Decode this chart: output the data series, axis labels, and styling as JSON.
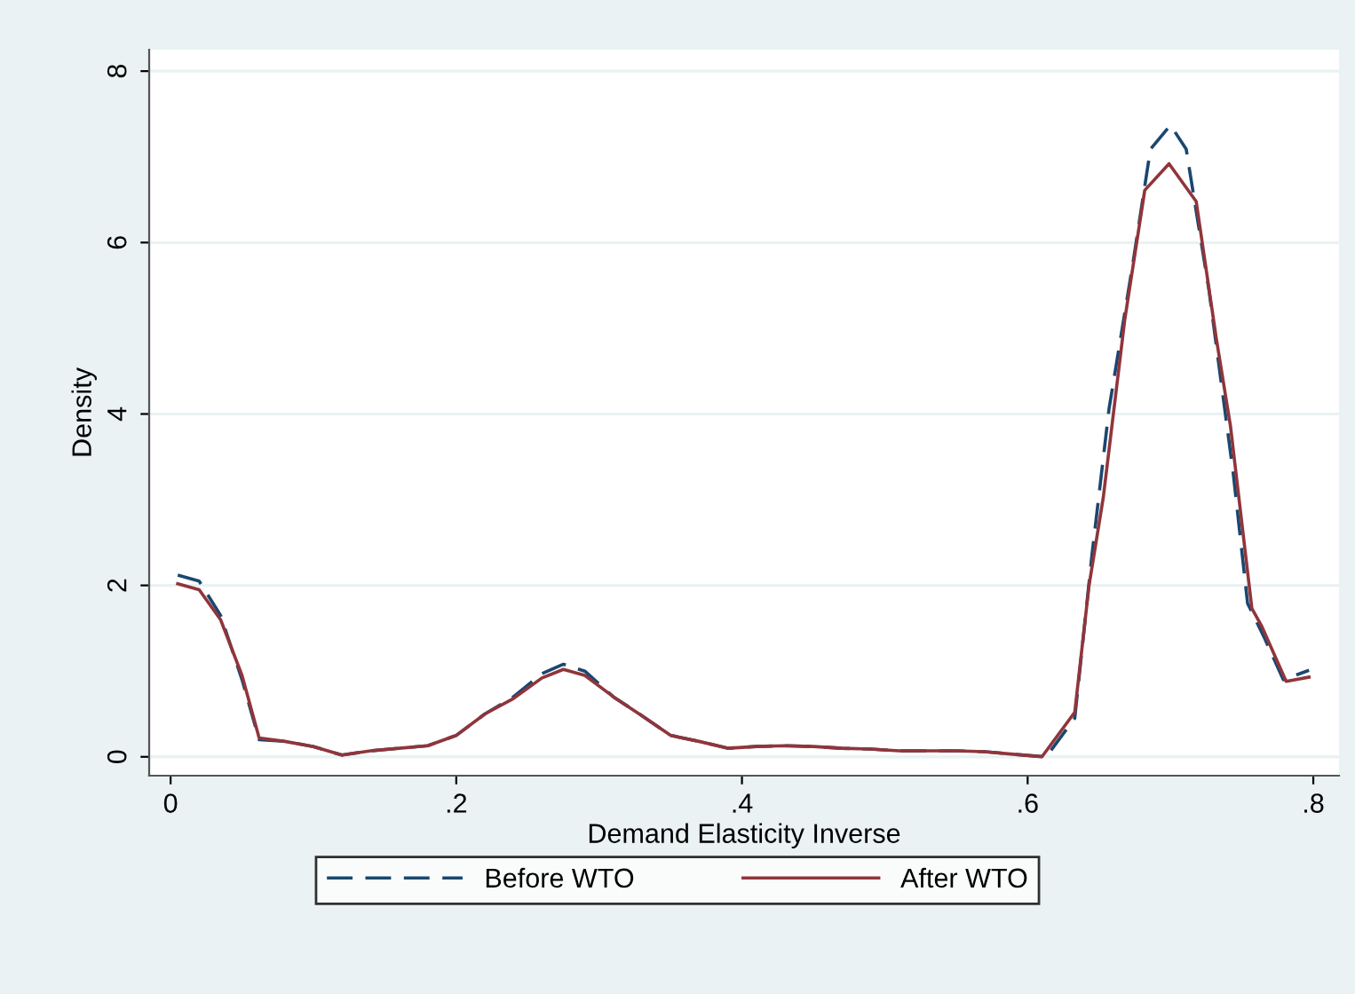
{
  "chart_data": {
    "type": "line",
    "xlabel": "Demand Elasticity Inverse",
    "ylabel": "Density",
    "xlim": [
      -0.015,
      0.818
    ],
    "ylim": [
      -0.22,
      8.25
    ],
    "xticks": [
      {
        "value": 0,
        "label": "0"
      },
      {
        "value": 0.2,
        "label": ".2"
      },
      {
        "value": 0.4,
        "label": ".4"
      },
      {
        "value": 0.6,
        "label": ".6"
      },
      {
        "value": 0.8,
        "label": ".8"
      }
    ],
    "yticks": [
      0,
      2,
      4,
      6,
      8
    ],
    "grid": "y",
    "legend": "bottom",
    "marker": "none",
    "series": [
      {
        "name": "Before WTO",
        "color": "#1a476f",
        "line_style": "dashed",
        "x": [
          0.005,
          0.02,
          0.035,
          0.05,
          0.062,
          0.08,
          0.1,
          0.12,
          0.14,
          0.16,
          0.18,
          0.2,
          0.22,
          0.24,
          0.26,
          0.275,
          0.29,
          0.31,
          0.33,
          0.35,
          0.37,
          0.39,
          0.41,
          0.43,
          0.45,
          0.47,
          0.49,
          0.51,
          0.53,
          0.55,
          0.57,
          0.59,
          0.613,
          0.633,
          0.645,
          0.657,
          0.674,
          0.686,
          0.7,
          0.711,
          0.727,
          0.744,
          0.754,
          0.766,
          0.779,
          0.797
        ],
        "values": [
          2.12,
          2.05,
          1.65,
          0.9,
          0.2,
          0.18,
          0.12,
          0.02,
          0.07,
          0.1,
          0.13,
          0.25,
          0.5,
          0.7,
          0.97,
          1.08,
          1.0,
          0.7,
          0.48,
          0.25,
          0.18,
          0.1,
          0.12,
          0.13,
          0.12,
          0.1,
          0.09,
          0.07,
          0.07,
          0.07,
          0.06,
          0.03,
          0.0,
          0.45,
          2.35,
          4.06,
          5.79,
          7.09,
          7.37,
          7.09,
          5.44,
          3.3,
          1.79,
          1.38,
          0.9,
          1.01
        ]
      },
      {
        "name": "After WTO",
        "color": "#90353b",
        "line_style": "solid",
        "x": [
          0.005,
          0.02,
          0.035,
          0.05,
          0.062,
          0.08,
          0.1,
          0.12,
          0.14,
          0.16,
          0.18,
          0.2,
          0.22,
          0.24,
          0.26,
          0.275,
          0.29,
          0.31,
          0.33,
          0.35,
          0.37,
          0.39,
          0.41,
          0.43,
          0.45,
          0.47,
          0.49,
          0.51,
          0.53,
          0.55,
          0.57,
          0.59,
          0.61,
          0.633,
          0.643,
          0.653,
          0.668,
          0.682,
          0.699,
          0.718,
          0.732,
          0.742,
          0.757,
          0.764,
          0.781,
          0.797
        ],
        "values": [
          2.02,
          1.95,
          1.6,
          0.95,
          0.22,
          0.18,
          0.12,
          0.02,
          0.07,
          0.1,
          0.13,
          0.25,
          0.5,
          0.68,
          0.92,
          1.02,
          0.95,
          0.7,
          0.48,
          0.25,
          0.18,
          0.1,
          0.12,
          0.13,
          0.12,
          0.1,
          0.09,
          0.07,
          0.07,
          0.07,
          0.06,
          0.03,
          0.0,
          0.52,
          2.0,
          3.03,
          5.1,
          6.61,
          6.92,
          6.48,
          4.89,
          3.86,
          1.73,
          1.52,
          0.88,
          0.93
        ]
      }
    ]
  }
}
